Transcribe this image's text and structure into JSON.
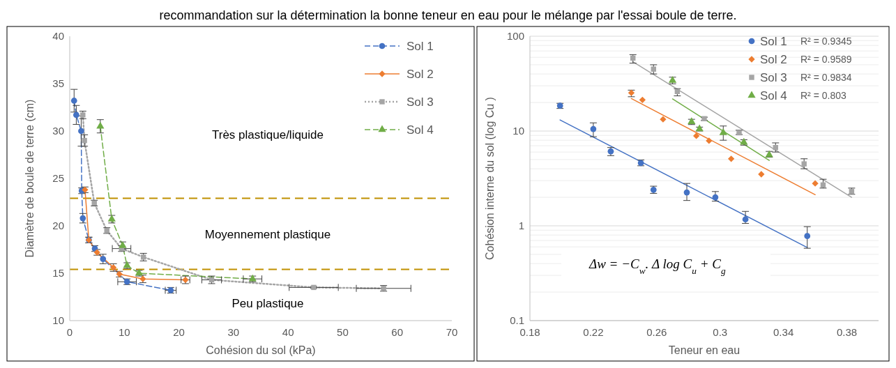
{
  "chart_data": [
    {
      "type": "line",
      "title": "recommandation sur la détermination la bonne teneur en eau pour le mélange par l'essai boule de terre.",
      "xlabel": "Cohésion du sol (kPa)",
      "ylabel": "Diamètre de boule de terre (cm)",
      "xlim": [
        0,
        70
      ],
      "xticks": [
        0,
        10,
        20,
        30,
        40,
        50,
        60,
        70
      ],
      "ylim": [
        10,
        40
      ],
      "yticks": [
        10,
        15,
        20,
        25,
        30,
        35,
        40
      ],
      "legend": "top right",
      "series": [
        {
          "name": "Sol 1",
          "color": "#4472c4",
          "marker": "circle",
          "line_style": "dashed",
          "x": [
            0.8,
            1.2,
            2.1,
            2.2,
            2.4,
            3.5,
            4.6,
            6.1,
            10.5,
            18.5
          ],
          "values": [
            33.2,
            31.7,
            30.0,
            23.7,
            20.8,
            18.5,
            17.6,
            16.5,
            14.1,
            13.2
          ],
          "errors": [
            1.2,
            1.0,
            1.6,
            0.3,
            0.5,
            0.3,
            0.3,
            0.5,
            0.3,
            0.3
          ],
          "xerrors": [
            null,
            null,
            null,
            null,
            null,
            null,
            null,
            null,
            1.7,
            1.0
          ]
        },
        {
          "name": "Sol 2",
          "color": "#ed7d31",
          "marker": "diamond",
          "line_style": "solid",
          "x": [
            2.8,
            3.5,
            5.0,
            8.0,
            9.1,
            13.4,
            21.2
          ],
          "values": [
            23.8,
            18.5,
            17.2,
            15.6,
            14.9,
            14.4,
            14.3
          ],
          "errors": [
            0.3,
            0.3,
            0.3,
            0.4,
            0.3,
            0.4,
            0.4
          ],
          "xerrors": [
            null,
            null,
            null,
            null,
            null,
            null,
            0.8
          ]
        },
        {
          "name": "Sol 3",
          "color": "#a5a5a5",
          "marker": "square",
          "line_style": "dotted",
          "x": [
            2.4,
            2.7,
            4.5,
            6.8,
            9.5,
            13.5,
            26.0,
            44.7,
            57.5
          ],
          "values": [
            31.7,
            29.0,
            22.4,
            19.5,
            17.6,
            16.7,
            14.3,
            13.5,
            13.4
          ],
          "errors": [
            0.4,
            0.6,
            0.3,
            0.3,
            0.3,
            0.4,
            0.4,
            0.1,
            0.3
          ],
          "xerrors": [
            null,
            null,
            null,
            null,
            1.7,
            null,
            1.8,
            4.5,
            5.0
          ]
        },
        {
          "name": "Sol 4",
          "color": "#70ad47",
          "marker": "triangle",
          "line_style": "dashed",
          "x": [
            5.6,
            7.7,
            9.7,
            10.5,
            12.7,
            33.5
          ],
          "values": [
            30.5,
            20.7,
            17.9,
            15.8,
            15.0,
            14.4
          ],
          "errors": [
            0.7,
            0.4,
            0.4,
            0.3,
            0.3,
            0.3
          ],
          "xerrors": [
            null,
            null,
            null,
            null,
            null,
            1.7
          ]
        }
      ],
      "ref_lines": [
        {
          "axis": "y",
          "value": 22.9,
          "color": "#bf9000",
          "line_style": "dashed"
        },
        {
          "axis": "y",
          "value": 15.4,
          "color": "#bf9000",
          "line_style": "dashed"
        }
      ],
      "annotations": [
        "Très plastique/liquide",
        "Moyennement plastique",
        "Peu plastique"
      ]
    },
    {
      "type": "scatter",
      "xlabel": "Teneur en eau",
      "ylabel": "Cohésion interne du sol  (log Cu )",
      "xlim": [
        0.18,
        0.4
      ],
      "xticks": [
        0.18,
        0.22,
        0.26,
        0.3,
        0.34,
        0.38
      ],
      "ylim": [
        0.1,
        100
      ],
      "yticks": [
        0.1,
        1,
        10,
        100
      ],
      "log": true,
      "grid": "y",
      "legend": "top right",
      "series": [
        {
          "name": "Sol 1",
          "color": "#4472c4",
          "marker": "circle",
          "x": [
            0.199,
            0.22,
            0.231,
            0.25,
            0.258,
            0.279,
            0.297,
            0.316,
            0.355
          ],
          "values": [
            18.5,
            10.5,
            6.1,
            4.6,
            2.4,
            2.25,
            2.0,
            1.17,
            0.78
          ],
          "errors": [
            [
              17.3,
              19.6
            ],
            [
              8.7,
              12.2
            ],
            [
              5.5,
              6.7
            ],
            [
              4.3,
              4.95
            ],
            [
              2.2,
              2.62
            ],
            [
              1.85,
              2.8
            ],
            [
              1.82,
              2.3
            ],
            [
              1.06,
              1.42
            ],
            [
              0.58,
              0.98
            ]
          ]
        },
        {
          "name": "Sol 2",
          "color": "#ed7d31",
          "marker": "diamond",
          "x": [
            0.244,
            0.251,
            0.264,
            0.285,
            0.293,
            0.307,
            0.326,
            0.36
          ],
          "values": [
            25.3,
            21.3,
            13.3,
            8.9,
            7.9,
            5.1,
            3.5,
            2.8
          ],
          "errors": [
            [
              23,
              27
            ],
            null,
            null,
            null,
            null,
            null,
            null,
            null
          ]
        },
        {
          "name": "Sol 3",
          "color": "#a5a5a5",
          "marker": "square",
          "x": [
            0.245,
            0.258,
            0.273,
            0.29,
            0.312,
            0.335,
            0.353,
            0.365,
            0.383
          ],
          "values": [
            58.8,
            45,
            26.1,
            13.5,
            9.6,
            6.7,
            4.5,
            2.7,
            2.3
          ],
          "errors": [
            [
              52,
              64
            ],
            [
              40,
              50
            ],
            [
              23.5,
              28
            ],
            [
              12.9,
              14
            ],
            [
              9.2,
              10.2
            ],
            [
              6,
              7.5
            ],
            [
              4,
              5.1
            ],
            [
              2.5,
              3.1
            ],
            [
              2.15,
              2.5
            ]
          ]
        },
        {
          "name": "Sol 4",
          "color": "#70ad47",
          "marker": "triangle",
          "x": [
            0.27,
            0.282,
            0.287,
            0.302,
            0.315,
            0.331
          ],
          "values": [
            34.1,
            12.5,
            10.5,
            9.6,
            7.6,
            5.6
          ],
          "errors": [
            [
              31.5,
              37
            ],
            [
              11.7,
              13.3
            ],
            [
              10,
              11
            ],
            [
              8,
              11.3
            ],
            [
              7.1,
              8.1
            ],
            [
              5.3,
              6.1
            ]
          ]
        },
        {
          "type": "line",
          "color": "#4472c4",
          "marker": "none",
          "x": [
            0.199,
            0.355
          ],
          "values": [
            13.1,
            0.59
          ]
        },
        {
          "type": "line",
          "color": "#ed7d31",
          "marker": "none",
          "x": [
            0.244,
            0.36
          ],
          "values": [
            22.0,
            2.13
          ]
        },
        {
          "type": "line",
          "color": "#a5a5a5",
          "marker": "none",
          "x": [
            0.245,
            0.383
          ],
          "values": [
            53.8,
            2.0
          ]
        },
        {
          "type": "line",
          "color": "#70ad47",
          "marker": "none",
          "x": [
            0.27,
            0.331
          ],
          "values": [
            21.8,
            4.9
          ]
        }
      ],
      "annotations": [
        "R² = 0.9345",
        "R² = 0.9589",
        "R² = 0.9834",
        "R² = 0.803",
        "Δw = −C$_{w}$. Δ log C$_{u}$ + C$_{g}$"
      ]
    }
  ]
}
